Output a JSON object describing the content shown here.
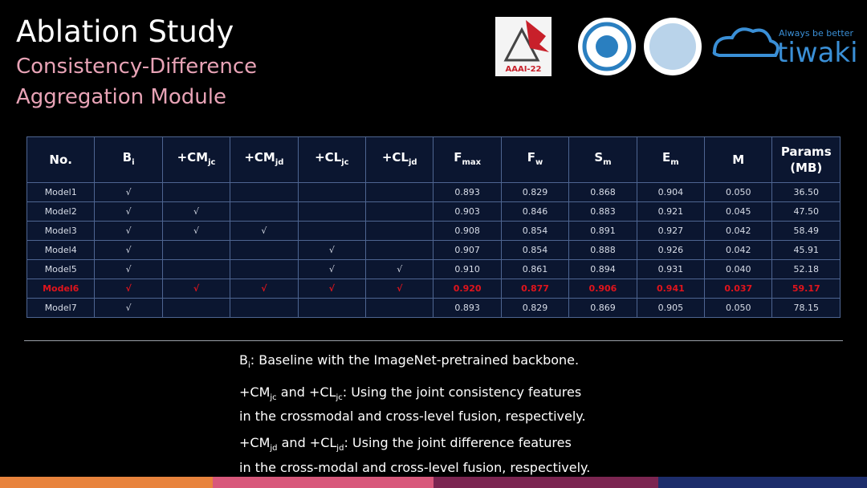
{
  "header": {
    "title": "Ablation Study",
    "subtitle_lines": [
      "Consistency-Difference",
      "Aggregation Module"
    ]
  },
  "logos": {
    "aaai": "AAAI-22",
    "tiwaki_tagline": "Always be better",
    "tiwaki": "tiwaki"
  },
  "table": {
    "header": [
      {
        "text": "No."
      },
      {
        "text": "B",
        "sub": "i"
      },
      {
        "text": "+CM",
        "sub": "jc"
      },
      {
        "text": "+CM",
        "sub": "jd"
      },
      {
        "text": "+CL",
        "sub": "jc"
      },
      {
        "text": "+CL",
        "sub": "jd"
      },
      {
        "text": "F",
        "sub": "max"
      },
      {
        "text": "F",
        "sub": "w"
      },
      {
        "text": "S",
        "sub": "m"
      },
      {
        "text": "E",
        "sub": "m"
      },
      {
        "text": "M"
      },
      {
        "text": "Params (MB)"
      }
    ],
    "rows": [
      [
        "Model1",
        "√",
        null,
        null,
        null,
        null,
        "0.893",
        "0.829",
        "0.868",
        "0.904",
        "0.050",
        "36.50"
      ],
      [
        "Model2",
        "√",
        "√",
        null,
        null,
        null,
        "0.903",
        "0.846",
        "0.883",
        "0.921",
        "0.045",
        "47.50"
      ],
      [
        "Model3",
        "√",
        "√",
        "√",
        null,
        null,
        "0.908",
        "0.854",
        "0.891",
        "0.927",
        "0.042",
        "58.49"
      ],
      [
        "Model4",
        "√",
        null,
        null,
        "√",
        null,
        "0.907",
        "0.854",
        "0.888",
        "0.926",
        "0.042",
        "45.91"
      ],
      [
        "Model5",
        "√",
        null,
        null,
        "√",
        "√",
        "0.910",
        "0.861",
        "0.894",
        "0.931",
        "0.040",
        "52.18"
      ],
      [
        "Model6",
        "√",
        "√",
        "√",
        "√",
        "√",
        "0.920",
        "0.877",
        "0.906",
        "0.941",
        "0.037",
        "59.17"
      ],
      [
        "Model7",
        "√",
        null,
        null,
        null,
        null,
        "0.893",
        "0.829",
        "0.869",
        "0.905",
        "0.050",
        "78.15"
      ]
    ],
    "highlight_row": 5
  },
  "notes": [
    [
      [
        {
          "text": "B"
        },
        {
          "sub": "i"
        },
        {
          "text": ": Baseline with the ImageNet-pretrained backbone."
        }
      ]
    ],
    [
      [
        {
          "text": "+CM"
        },
        {
          "sub": "jc"
        },
        {
          "text": " and +CL"
        },
        {
          "sub": "jc"
        },
        {
          "text": ": Using the joint consistency features"
        }
      ],
      [
        {
          "text": "in the crossmodal and cross-level fusion, respectively."
        }
      ]
    ],
    [
      [
        {
          "text": "+CM"
        },
        {
          "sub": "jd"
        },
        {
          "text": " and +CL"
        },
        {
          "sub": "jd"
        },
        {
          "text": ": Using the joint difference features"
        }
      ],
      [
        {
          "text": "in the cross-modal and cross-level fusion, respectively."
        }
      ]
    ]
  ]
}
